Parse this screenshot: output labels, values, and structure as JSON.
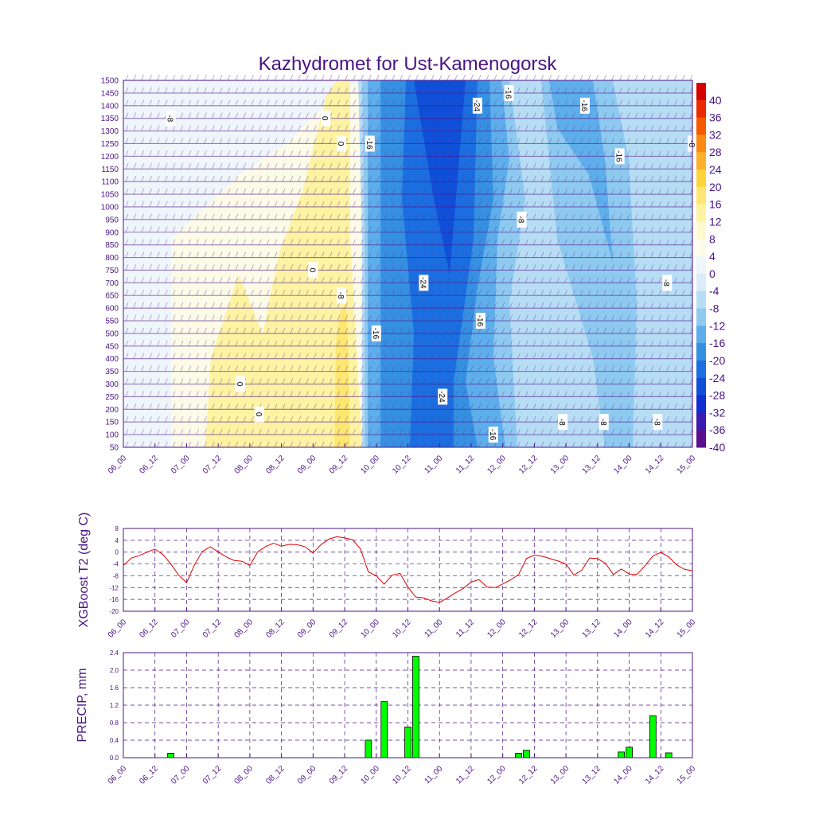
{
  "page": {
    "title": "Kazhydromet for Ust-Kamenogorsk"
  },
  "x_time_labels": [
    "06_00",
    "06_12",
    "07_00",
    "07_12",
    "08_00",
    "08_12",
    "09_00",
    "09_12",
    "10_00",
    "10_12",
    "11_00",
    "11_12",
    "12_00",
    "12_12",
    "13_00",
    "13_12",
    "14_00",
    "14_12",
    "15_00"
  ],
  "chart_data": [
    {
      "id": "cross_section",
      "type": "heatmap",
      "title": "Kazhydromet for Ust-Kamenogorsk",
      "y_ticks": [
        50,
        100,
        150,
        200,
        250,
        300,
        350,
        400,
        450,
        500,
        550,
        600,
        650,
        700,
        750,
        800,
        850,
        900,
        950,
        1000,
        1050,
        1100,
        1150,
        1200,
        1250,
        1300,
        1350,
        1400,
        1450,
        1500
      ],
      "ylim": [
        50,
        1500
      ],
      "colorbar": {
        "labels": [
          "40",
          "36",
          "32",
          "28",
          "24",
          "20",
          "16",
          "12",
          "8",
          "4",
          "0",
          "-4",
          "-8",
          "-12",
          "-16",
          "-20",
          "-24",
          "-28",
          "-32",
          "-36",
          "-40"
        ],
        "colors": [
          "#d40000",
          "#ea2a00",
          "#f55a00",
          "#fa8a10",
          "#fdb128",
          "#fdd53b",
          "#fde772",
          "#fdf3a3",
          "#fefacd",
          "#fbfbe7",
          "#eef5fb",
          "#d9ecf8",
          "#b7ddf4",
          "#8ecaf0",
          "#5daeea",
          "#3690e2",
          "#1b6ee0",
          "#0f4fd8",
          "#0f2fd0",
          "#3b1bb0",
          "#5a0f8c"
        ]
      },
      "contour_labels": [
        {
          "text": "-8",
          "x": 6.75,
          "y": 1350
        },
        {
          "text": "0",
          "x": 9.2,
          "y": 1350
        },
        {
          "text": "0",
          "x": 9.45,
          "y": 1250
        },
        {
          "text": "-16",
          "x": 9.9,
          "y": 1250
        },
        {
          "text": "-24",
          "x": 11.6,
          "y": 1400
        },
        {
          "text": "-16",
          "x": 12.1,
          "y": 1450
        },
        {
          "text": "-16",
          "x": 13.3,
          "y": 1400
        },
        {
          "text": "-16",
          "x": 13.85,
          "y": 1200
        },
        {
          "text": "-8",
          "x": 15.0,
          "y": 1250
        },
        {
          "text": "-8",
          "x": 12.3,
          "y": 950
        },
        {
          "text": "0",
          "x": 9.0,
          "y": 750
        },
        {
          "text": "-24",
          "x": 10.75,
          "y": 700
        },
        {
          "text": "-8",
          "x": 9.45,
          "y": 650
        },
        {
          "text": "-8",
          "x": 14.6,
          "y": 700
        },
        {
          "text": "-16",
          "x": 10.0,
          "y": 500
        },
        {
          "text": "-16",
          "x": 11.65,
          "y": 550
        },
        {
          "text": "0",
          "x": 7.85,
          "y": 300
        },
        {
          "text": "-24",
          "x": 11.05,
          "y": 250
        },
        {
          "text": "0",
          "x": 8.15,
          "y": 180
        },
        {
          "text": "-16",
          "x": 11.85,
          "y": 100
        },
        {
          "text": "-8",
          "x": 12.95,
          "y": 150
        },
        {
          "text": "-8",
          "x": 13.6,
          "y": 150
        },
        {
          "text": "-8",
          "x": 14.45,
          "y": 150
        }
      ]
    },
    {
      "id": "t2",
      "type": "line",
      "ylabel": "XGBoost T2 (deg C)",
      "ylim": [
        -20,
        8
      ],
      "y_ticks": [
        8,
        4,
        0,
        -4,
        -8,
        -12,
        -16,
        -20
      ],
      "color": "#e00000",
      "x": [
        0,
        1,
        2,
        3,
        4,
        5,
        6,
        7,
        8,
        9,
        10,
        11,
        12,
        13,
        14,
        15,
        16,
        17,
        18,
        19,
        20,
        21,
        22,
        23,
        24,
        25,
        26,
        27,
        28,
        29,
        30,
        31,
        32,
        33,
        34,
        35,
        36,
        37,
        38,
        39,
        40,
        41,
        42,
        43,
        44,
        45,
        46,
        47,
        48,
        49,
        50,
        51,
        52,
        53,
        54,
        55,
        56,
        57,
        58,
        59,
        60,
        61,
        62,
        63,
        64,
        65,
        66,
        67,
        68,
        69,
        70,
        71,
        72
      ],
      "values": [
        -4.5,
        -2.0,
        -1.2,
        0,
        1.0,
        -0.8,
        -4.0,
        -7.8,
        -10.3,
        -4.3,
        0.3,
        1.8,
        0.1,
        -1.6,
        -2.8,
        -3.1,
        -4.5,
        0.1,
        1.9,
        3.0,
        2.0,
        2.6,
        2.5,
        1.8,
        -0.3,
        2.5,
        4.4,
        5.2,
        4.8,
        4.2,
        1.1,
        -6.7,
        -8.0,
        -10.8,
        -7.8,
        -7.2,
        -11.8,
        -15.2,
        -15.5,
        -16.5,
        -17.0,
        -15.5,
        -13.8,
        -12.3,
        -10.1,
        -9.3,
        -11.8,
        -12.0,
        -10.8,
        -9.4,
        -7.6,
        -2.2,
        -1.0,
        -1.4,
        -2.2,
        -3.0,
        -4.0,
        -7.8,
        -6.1,
        -2.0,
        -2.2,
        -3.8,
        -7.6,
        -5.7,
        -7.4,
        -7.5,
        -4.6,
        -1.3,
        -0.1,
        -1.6,
        -4.3,
        -5.8,
        -6.3
      ]
    },
    {
      "id": "precip",
      "type": "bar",
      "ylabel": "PRECIP, mm",
      "ylim": [
        0,
        2.4
      ],
      "y_ticks": [
        "0.0",
        "0.4",
        "0.8",
        "1.2",
        "1.6",
        "2.0",
        "2.4"
      ],
      "color": "#00ff00",
      "x": [
        6,
        31,
        33,
        36,
        37,
        50,
        51,
        63,
        64,
        67,
        69
      ],
      "values": [
        0.1,
        0.4,
        1.28,
        0.7,
        2.32,
        0.1,
        0.17,
        0.13,
        0.24,
        0.96,
        0.11
      ]
    }
  ]
}
